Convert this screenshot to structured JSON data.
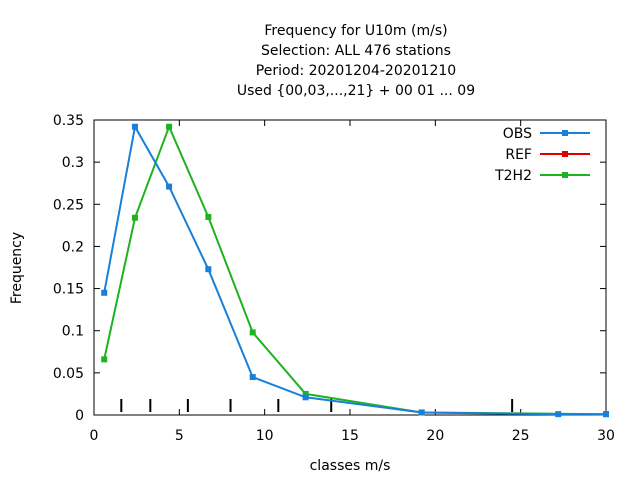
{
  "chart_data": {
    "type": "line",
    "title_lines": [
      "Frequency  for U10m (m/s)",
      "Selection: ALL    476 stations",
      "Period: 20201204-20201210",
      "Used {00,03,...,21} + 00 01 ... 09"
    ],
    "xlabel": "classes m/s",
    "ylabel": "Frequency",
    "xlim": [
      0,
      30
    ],
    "ylim": [
      0,
      0.35
    ],
    "x_ticks": [
      0,
      5,
      10,
      15,
      20,
      25,
      30
    ],
    "y_ticks": [
      0,
      0.05,
      0.1,
      0.15,
      0.2,
      0.25,
      0.3,
      0.35
    ],
    "x_tick_labels": [
      "0",
      "5",
      "10",
      "15",
      "20",
      "25",
      "30"
    ],
    "y_tick_labels": [
      "0",
      "0.05",
      "0.1",
      "0.15",
      "0.2",
      "0.25",
      "0.3",
      "0.35"
    ],
    "class_boundaries": [
      1.6,
      3.3,
      5.5,
      8.0,
      10.8,
      13.9,
      24.5
    ],
    "grid": false,
    "legend_position": "top-right",
    "series": [
      {
        "name": "OBS",
        "color": "#1a7fd9",
        "x": [
          0.6,
          2.4,
          4.4,
          6.7,
          9.3,
          12.4,
          19.2,
          27.2,
          30.0
        ],
        "values": [
          0.145,
          0.342,
          0.271,
          0.173,
          0.045,
          0.021,
          0.003,
          0.001,
          0.001
        ]
      },
      {
        "name": "REF",
        "color": "#e00000",
        "x": [],
        "values": []
      },
      {
        "name": "T2H2",
        "color": "#1eb31e",
        "x": [
          0.6,
          2.4,
          4.4,
          6.7,
          9.3,
          12.4,
          19.2,
          30.0
        ],
        "values": [
          0.066,
          0.234,
          0.342,
          0.235,
          0.098,
          0.025,
          0.003,
          0.001
        ]
      }
    ]
  }
}
